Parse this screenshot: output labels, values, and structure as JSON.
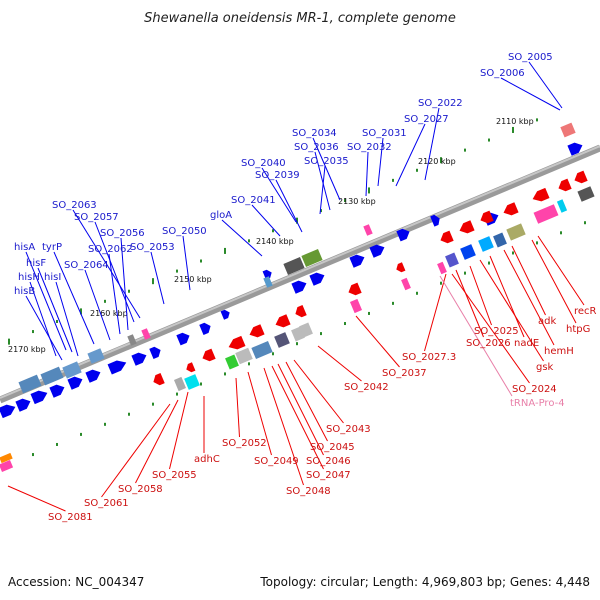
{
  "title": "Shewanella oneidensis MR-1, complete genome",
  "footer": {
    "accession": "Accession: NC_004347",
    "stats": "Topology: circular; Length: 4,969,803 bp; Genes: 4,448"
  },
  "scale_labels": [
    "2110 kbp",
    "2120 kbp",
    "2130 kbp",
    "2140 kbp",
    "2150 kbp",
    "2160 kbp",
    "2170 kbp"
  ],
  "forward_labels": [
    "SO_2005",
    "SO_2006",
    "SO_2022",
    "SO_2027",
    "SO_2031",
    "SO_2032",
    "SO_2034",
    "SO_2036",
    "SO_2035",
    "SO_2040",
    "SO_2039",
    "SO_2041",
    "gloA",
    "SO_2050",
    "SO_2053",
    "SO_2063",
    "SO_2057",
    "SO_2056",
    "SO_2062",
    "SO_2064",
    "tyrP",
    "hisA",
    "hisF",
    "hisI",
    "hisH",
    "hisB"
  ],
  "reverse_labels": [
    "recR",
    "htpG",
    "adk",
    "hemH",
    "nadE",
    "gsk",
    "SO_2025",
    "SO_2026",
    "SO_2024",
    "SO_2027.3",
    "SO_2037",
    "SO_2042",
    "SO_2043",
    "SO_2045",
    "SO_2046",
    "SO_2047",
    "SO_2048",
    "SO_2049",
    "SO_2052",
    "adhC",
    "SO_2055",
    "SO_2058",
    "SO_2061",
    "SO_2081"
  ],
  "rna_labels": [
    "tRNA-Pro-4"
  ],
  "colors": {
    "backbone": "#8c8c8c",
    "forward_gene": "#0000ee",
    "reverse_gene": "#ee0000",
    "forward_label": "#1a1acc",
    "reverse_label": "#cc1111",
    "rna_label": "#e87fa8",
    "tick": "#2a8a2a"
  }
}
